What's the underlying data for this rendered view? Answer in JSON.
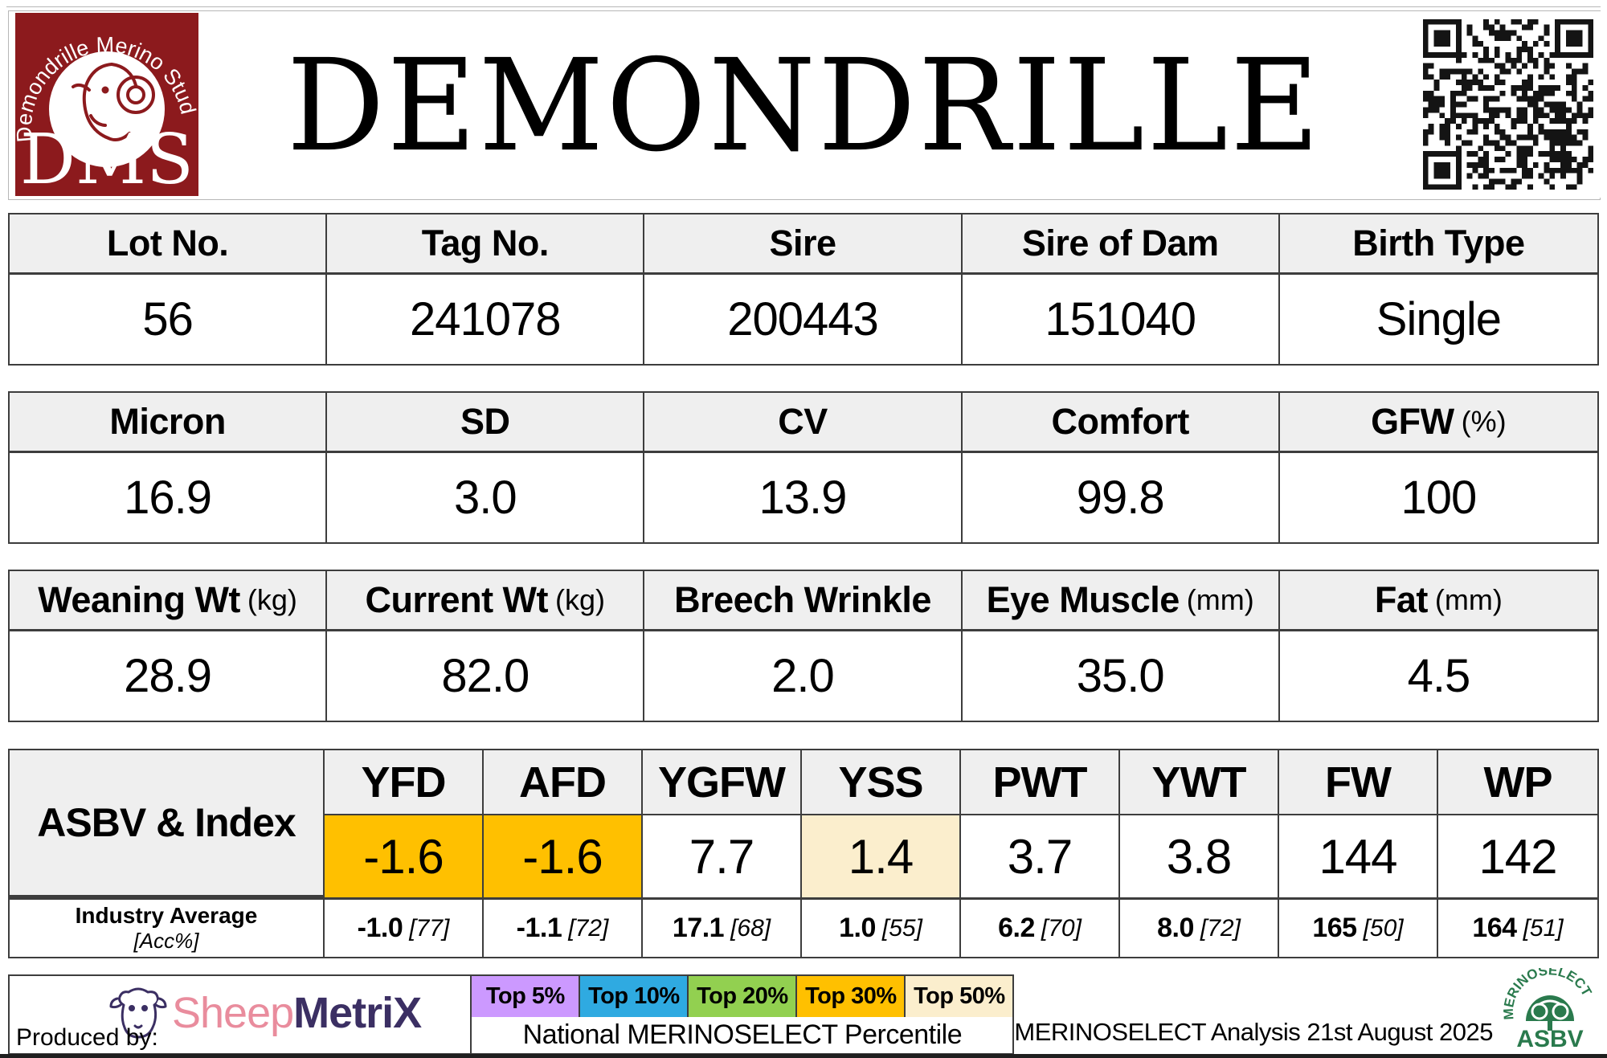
{
  "header": {
    "title": "DEMONDRILLE",
    "logo": {
      "arc_text": "Demondrille Merino Stud",
      "acronym": "DMS",
      "brand_color": "#8c1a1d"
    }
  },
  "tables": {
    "identity": {
      "columns": [
        {
          "label": "Lot No.",
          "unit": "",
          "value": "56"
        },
        {
          "label": "Tag No.",
          "unit": "",
          "value": "241078"
        },
        {
          "label": "Sire",
          "unit": "",
          "value": "200443"
        },
        {
          "label": "Sire of Dam",
          "unit": "",
          "value": "151040"
        },
        {
          "label": "Birth Type",
          "unit": "",
          "value": "Single"
        }
      ]
    },
    "wool": {
      "columns": [
        {
          "label": "Micron",
          "unit": "",
          "value": "16.9"
        },
        {
          "label": "SD",
          "unit": "",
          "value": "3.0"
        },
        {
          "label": "CV",
          "unit": "",
          "value": "13.9"
        },
        {
          "label": "Comfort",
          "unit": "",
          "value": "99.8"
        },
        {
          "label": "GFW",
          "unit": "(%)",
          "value": "100"
        }
      ]
    },
    "body": {
      "columns": [
        {
          "label": "Weaning Wt",
          "unit": "(kg)",
          "value": "28.9"
        },
        {
          "label": "Current Wt",
          "unit": "(kg)",
          "value": "82.0"
        },
        {
          "label": "Breech Wrinkle",
          "unit": "",
          "value": "2.0"
        },
        {
          "label": "Eye Muscle",
          "unit": "(mm)",
          "value": "35.0"
        },
        {
          "label": "Fat",
          "unit": "(mm)",
          "value": "4.5"
        }
      ]
    }
  },
  "asbv": {
    "row_label": "ASBV & Index",
    "industry_label": "Industry Average",
    "industry_sub": "[Acc%]",
    "columns": [
      {
        "trait": "YFD",
        "value": "-1.6",
        "highlight": "#ffc000",
        "industry": "-1.0",
        "acc": "[77]"
      },
      {
        "trait": "AFD",
        "value": "-1.6",
        "highlight": "#ffc000",
        "industry": "-1.1",
        "acc": "[72]"
      },
      {
        "trait": "YGFW",
        "value": "7.7",
        "highlight": "",
        "industry": "17.1",
        "acc": "[68]"
      },
      {
        "trait": "YSS",
        "value": "1.4",
        "highlight": "#fbeecd",
        "industry": "1.0",
        "acc": "[55]"
      },
      {
        "trait": "PWT",
        "value": "3.7",
        "highlight": "",
        "industry": "6.2",
        "acc": "[70]"
      },
      {
        "trait": "YWT",
        "value": "3.8",
        "highlight": "",
        "industry": "8.0",
        "acc": "[72]"
      },
      {
        "trait": "FW",
        "value": "144",
        "highlight": "",
        "industry": "165",
        "acc": "[50]"
      },
      {
        "trait": "WP",
        "value": "142",
        "highlight": "",
        "industry": "164",
        "acc": "[51]"
      }
    ]
  },
  "footer": {
    "produced_by": "Produced by:",
    "sheepmetrix": {
      "word1": "Sheep",
      "word2": "MetriX"
    },
    "legend": [
      {
        "label": "Top 5%",
        "color": "#cc99ff"
      },
      {
        "label": "Top 10%",
        "color": "#2faae1"
      },
      {
        "label": "Top 20%",
        "color": "#92d050"
      },
      {
        "label": "Top 30%",
        "color": "#ffc000"
      },
      {
        "label": "Top 50%",
        "color": "#fbeecd"
      }
    ],
    "legend_caption": "National MERINOSELECT Percentile",
    "analysis_note": "MERINOSELECT Analysis 21st August 2025",
    "merinoselect_logo": {
      "arc_text": "MERINOSELECT",
      "text": "ASBV",
      "color": "#2a7a4d"
    }
  }
}
